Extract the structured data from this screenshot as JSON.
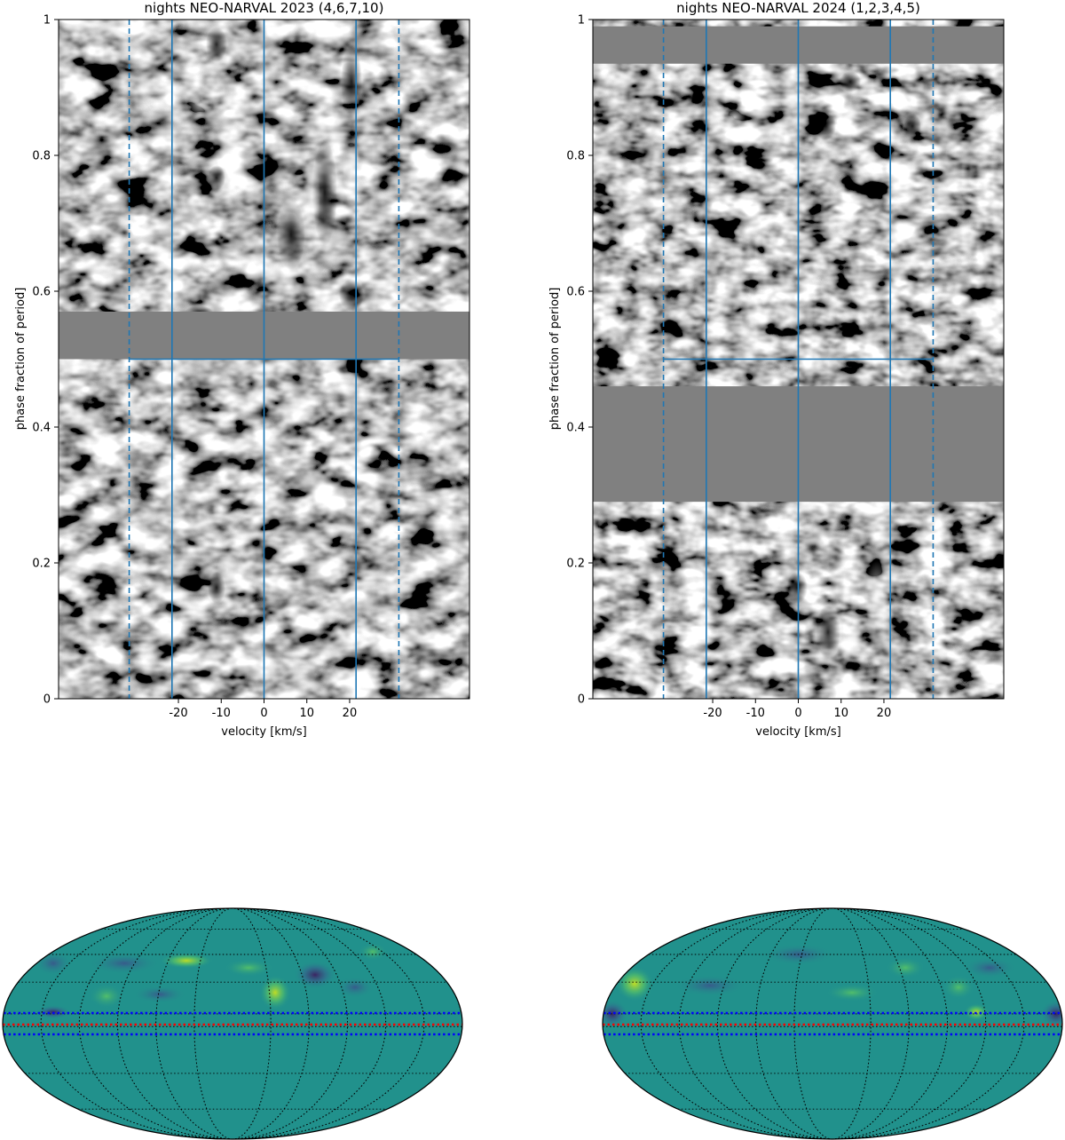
{
  "chart_data": [
    {
      "type": "heatmap",
      "title": "nights NEO-NARVAL 2023 (4,6,7,10)",
      "xlabel": "velocity [km/s]",
      "ylabel": "phase fraction of period]",
      "xlim": [
        -48,
        48
      ],
      "ylim": [
        0,
        1
      ],
      "xticks": [
        -20,
        -10,
        0,
        10,
        20
      ],
      "xtick_labels": [
        "-20",
        "-10",
        "0",
        "10",
        "20"
      ],
      "yticks": [
        0,
        0.2,
        0.4,
        0.6,
        0.8,
        1
      ],
      "ytick_labels": [
        "0",
        "0.2",
        "0.4",
        "0.6",
        "0.8",
        "1"
      ],
      "colormap": "gray",
      "line_color": "#1f77b4",
      "solid_vlines": [
        -21.5,
        0,
        21.5
      ],
      "dashed_vlines": [
        -31.5,
        31.5
      ],
      "hline": {
        "y": 0.5,
        "x_range": [
          -31.5,
          31.5
        ]
      },
      "no_data_phase_bands": [
        [
          0.5,
          0.57
        ]
      ]
    },
    {
      "type": "heatmap",
      "title": "nights NEO-NARVAL 2024 (1,2,3,4,5)",
      "xlabel": "velocity [km/s]",
      "ylabel": "phase fraction of period]",
      "xlim": [
        -48,
        48
      ],
      "ylim": [
        0,
        1
      ],
      "xticks": [
        -20,
        -10,
        0,
        10,
        20
      ],
      "xtick_labels": [
        "-20",
        "-10",
        "0",
        "10",
        "20"
      ],
      "yticks": [
        0,
        0.2,
        0.4,
        0.6,
        0.8,
        1
      ],
      "ytick_labels": [
        "0",
        "0.2",
        "0.4",
        "0.6",
        "0.8",
        "1"
      ],
      "colormap": "gray",
      "line_color": "#1f77b4",
      "solid_vlines": [
        -21.5,
        0,
        21.5
      ],
      "dashed_vlines": [
        -31.5,
        31.5
      ],
      "hline": {
        "y": 0.5,
        "x_range": [
          -31.5,
          31.5
        ]
      },
      "no_data_phase_bands": [
        [
          0.29,
          0.46
        ],
        [
          0.935,
          0.99
        ]
      ]
    },
    {
      "type": "heatmap",
      "projection": "mollweide",
      "colormap": "viridis",
      "graticule": "black dotted",
      "latitude_lines": [
        {
          "color": "#0000ff",
          "style": "dotted",
          "role": "upper"
        },
        {
          "color": "#ff0000",
          "style": "dotted",
          "role": "middle"
        },
        {
          "color": "#0000ff",
          "style": "dotted",
          "role": "lower"
        }
      ],
      "bright_spots": [
        "upper-center",
        "center-right"
      ],
      "dark_spots": [
        "upper-right"
      ]
    },
    {
      "type": "heatmap",
      "projection": "mollweide",
      "colormap": "viridis",
      "graticule": "black dotted",
      "latitude_lines": [
        {
          "color": "#0000ff",
          "style": "dotted",
          "role": "upper"
        },
        {
          "color": "#ff0000",
          "style": "dotted",
          "role": "middle"
        },
        {
          "color": "#0000ff",
          "style": "dotted",
          "role": "lower"
        }
      ],
      "bright_spots": [
        "left-edge",
        "center-right"
      ],
      "dark_spots": [
        "left-edge",
        "right-edge"
      ]
    }
  ]
}
